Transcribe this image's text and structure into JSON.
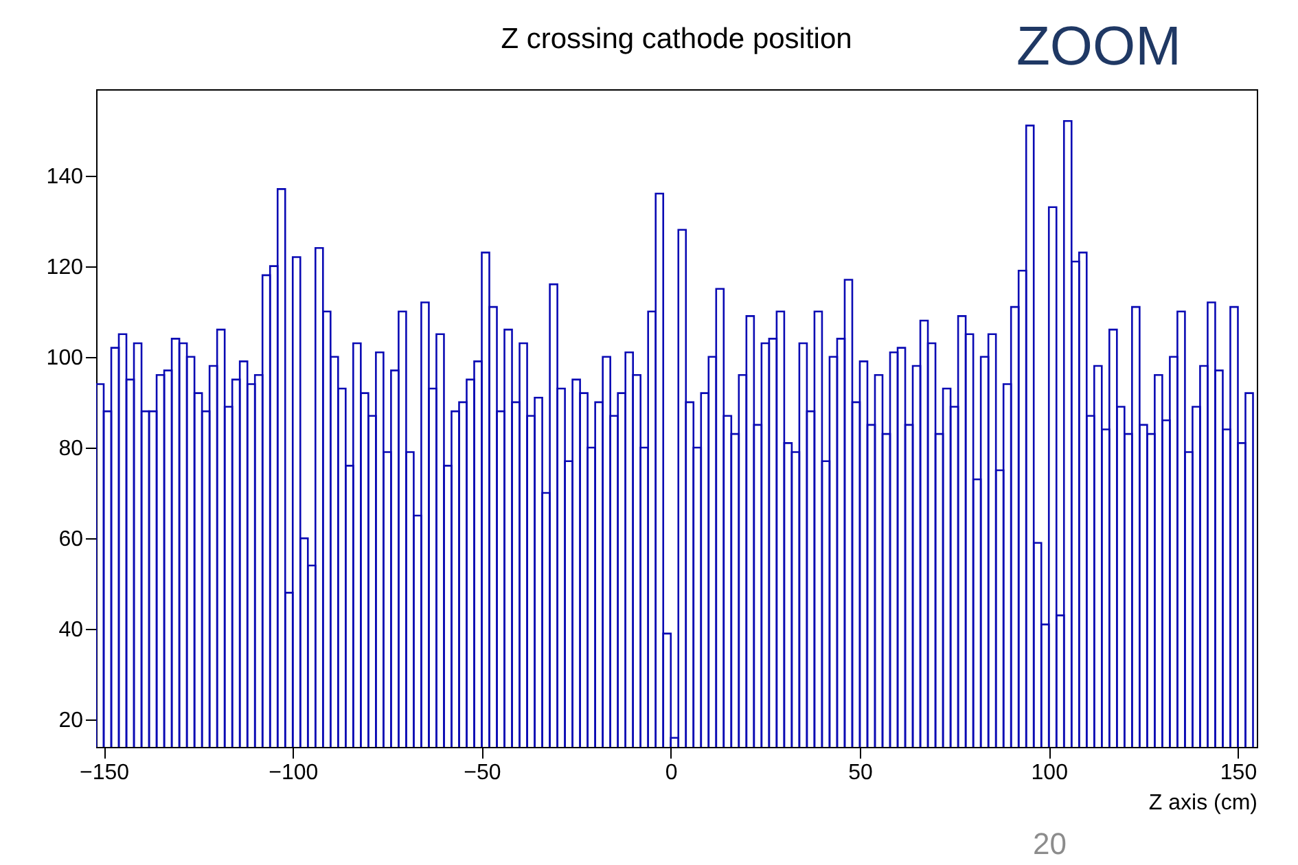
{
  "chart_data": {
    "type": "histogram",
    "title": "Z crossing cathode position",
    "xlabel": "Z axis (cm)",
    "annotations": [
      "ZOOM",
      "20"
    ],
    "color": "#0a0ab4",
    "bins": [
      -152,
      -150,
      -148,
      -146,
      -144,
      -142,
      -140,
      -138,
      -136,
      -134,
      -132,
      -130,
      -128,
      -126,
      -124,
      -122,
      -120,
      -118,
      -116,
      -114,
      -112,
      -110,
      -108,
      -106,
      -104,
      -102,
      -100,
      -98,
      -96,
      -94,
      -92,
      -90,
      -88,
      -86,
      -84,
      -82,
      -80,
      -78,
      -76,
      -74,
      -72,
      -70,
      -68,
      -66,
      -64,
      -62,
      -60,
      -58,
      -56,
      -54,
      -52,
      -50,
      -48,
      -46,
      -44,
      -42,
      -40,
      -38,
      -36,
      -34,
      -32,
      -30,
      -28,
      -26,
      -24,
      -22,
      -20,
      -18,
      -16,
      -14,
      -12,
      -10,
      -8,
      -6,
      -4,
      -2,
      0,
      2,
      4,
      6,
      8,
      10,
      12,
      14,
      16,
      18,
      20,
      22,
      24,
      26,
      28,
      30,
      32,
      34,
      36,
      38,
      40,
      42,
      44,
      46,
      48,
      50,
      52,
      54,
      56,
      58,
      60,
      62,
      64,
      66,
      68,
      70,
      72,
      74,
      76,
      78,
      80,
      82,
      84,
      86,
      88,
      90,
      92,
      94,
      96,
      98,
      100,
      102,
      104,
      106,
      108,
      110,
      112,
      114,
      116,
      118,
      120,
      122,
      124,
      126,
      128,
      130,
      132,
      134,
      136,
      138,
      140,
      142,
      144,
      146,
      148,
      150,
      152,
      154
    ],
    "values": [
      94,
      88,
      102,
      105,
      95,
      103,
      88,
      88,
      96,
      97,
      104,
      103,
      100,
      92,
      88,
      98,
      106,
      89,
      95,
      99,
      94,
      96,
      118,
      120,
      137,
      48,
      122,
      60,
      54,
      124,
      110,
      100,
      93,
      76,
      103,
      92,
      87,
      101,
      79,
      97,
      110,
      79,
      65,
      112,
      93,
      105,
      76,
      88,
      90,
      95,
      99,
      123,
      111,
      88,
      106,
      90,
      103,
      87,
      91,
      70,
      116,
      93,
      77,
      95,
      92,
      80,
      90,
      100,
      87,
      92,
      101,
      96,
      80,
      110,
      136,
      39,
      16,
      128,
      90,
      80,
      92,
      100,
      115,
      87,
      83,
      96,
      109,
      85,
      103,
      104,
      110,
      81,
      79,
      103,
      88,
      110,
      77,
      100,
      104,
      117,
      90,
      99,
      85,
      96,
      83,
      101,
      102,
      85,
      98,
      108,
      103,
      83,
      93,
      89,
      109,
      105,
      73,
      100,
      105,
      75,
      94,
      111,
      119,
      151,
      59,
      41,
      133,
      43,
      152,
      121,
      123,
      87,
      98,
      84,
      106,
      89,
      83,
      111,
      85,
      83,
      96,
      86,
      100,
      110,
      79,
      89,
      98,
      112,
      97,
      84,
      111,
      81,
      92
    ],
    "xlim": [
      -152,
      155
    ],
    "ylim": [
      14,
      159
    ],
    "xticks": [
      -150,
      -100,
      -50,
      0,
      50,
      100,
      150
    ],
    "yticks": [
      20,
      40,
      60,
      80,
      100,
      120,
      140
    ]
  }
}
